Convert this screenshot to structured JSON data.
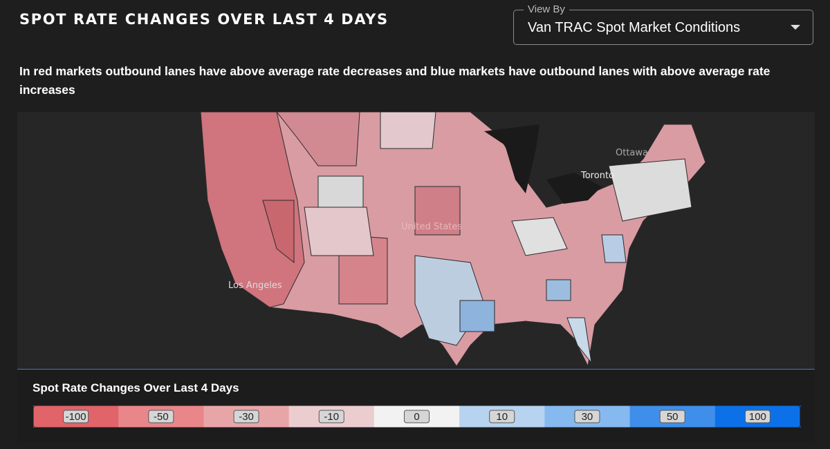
{
  "header": {
    "title": "SPOT RATE CHANGES OVER LAST 4 DAYS",
    "view_by_label": "View By",
    "view_by_value": "Van TRAC Spot Market Conditions"
  },
  "description": "In red markets outbound lanes have above average rate decreases and blue markets have outbound lanes with above average rate increases",
  "map": {
    "labels": [
      "Ottawa",
      "Toronto",
      "United States",
      "Los Angeles"
    ]
  },
  "legend": {
    "title": "Spot Rate Changes Over Last 4 Days",
    "bins": [
      {
        "value": -100,
        "color": "#e06469"
      },
      {
        "value": -50,
        "color": "#e8868a"
      },
      {
        "value": -30,
        "color": "#e8a5a8"
      },
      {
        "value": -10,
        "color": "#ebcdd0"
      },
      {
        "value": 0,
        "color": "#f2f2f2"
      },
      {
        "value": 10,
        "color": "#b8d3ef"
      },
      {
        "value": 30,
        "color": "#86b9ef"
      },
      {
        "value": 50,
        "color": "#3f8fea"
      },
      {
        "value": 100,
        "color": "#0c71e8"
      }
    ]
  }
}
